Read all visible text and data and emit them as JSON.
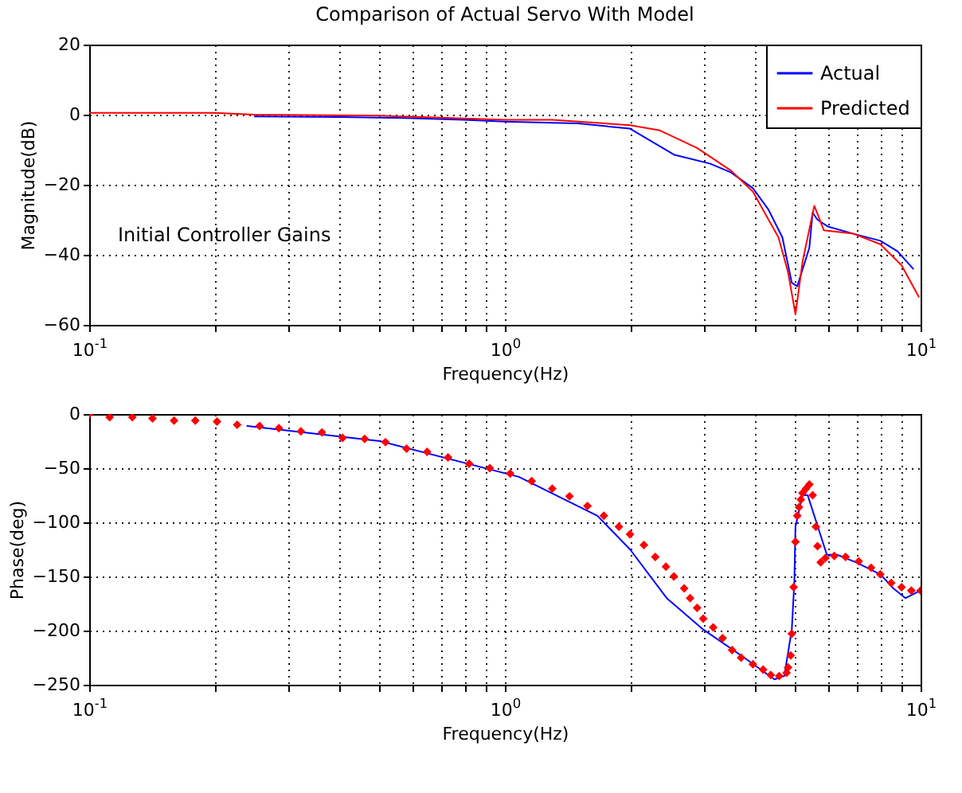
{
  "chart_data": [
    {
      "type": "line",
      "title": "Comparison of Actual Servo With Model",
      "xlabel": "Frequency(Hz)",
      "ylabel": "Magnitude(dB)",
      "log": "x",
      "xlim": [
        0.1,
        10
      ],
      "xticks": [
        {
          "value": 0.1,
          "label": "10$^{-1}$"
        },
        {
          "value": 0.2,
          "label": null
        },
        {
          "value": 0.3,
          "label": null
        },
        {
          "value": 0.4,
          "label": null
        },
        {
          "value": 0.5,
          "label": null
        },
        {
          "value": 0.6,
          "label": null
        },
        {
          "value": 0.7,
          "label": null
        },
        {
          "value": 0.8,
          "label": null
        },
        {
          "value": 0.9,
          "label": null
        },
        {
          "value": 1,
          "label": "10$^{0}$"
        },
        {
          "value": 2,
          "label": null
        },
        {
          "value": 3,
          "label": null
        },
        {
          "value": 4,
          "label": null
        },
        {
          "value": 5,
          "label": null
        },
        {
          "value": 6,
          "label": null
        },
        {
          "value": 7,
          "label": null
        },
        {
          "value": 8,
          "label": null
        },
        {
          "value": 9,
          "label": null
        },
        {
          "value": 10,
          "label": "10$^{1}$"
        }
      ],
      "ylim": [
        -60,
        20
      ],
      "yticks": [
        -60,
        -40,
        -20,
        0,
        20
      ],
      "grid": true,
      "legend": "top right",
      "annotations": [
        "Initial Controller Gains"
      ],
      "series": [
        {
          "name": "Actual",
          "color": "#0000ff",
          "x": [
            0.25,
            0.4,
            0.6,
            0.8,
            1.0,
            1.5,
            2.0,
            2.55,
            3.12,
            3.5,
            3.95,
            4.3,
            4.65,
            4.9,
            5.05,
            5.4,
            5.5,
            5.65,
            6.0,
            6.9,
            8.0,
            8.8,
            9.6
          ],
          "values": [
            -0.5,
            -0.7,
            -1,
            -1.5,
            -2,
            -2.5,
            -4,
            -11.4,
            -14,
            -16.5,
            -21,
            -27,
            -35,
            -48,
            -49,
            -38,
            -28,
            -30,
            -32,
            -34,
            -36,
            -39,
            -44
          ]
        },
        {
          "name": "Predicted",
          "color": "#ff0000",
          "x": [
            0.1,
            0.2,
            0.25,
            0.5,
            1.0,
            1.3,
            2.0,
            2.36,
            2.9,
            3.5,
            3.95,
            4.55,
            4.8,
            5.0,
            5.2,
            5.55,
            5.85,
            6.9,
            8.0,
            9.0,
            9.9
          ],
          "values": [
            0.5,
            0.5,
            0,
            -0.3,
            -1.5,
            -1.5,
            -3,
            -4.5,
            -9.5,
            -16,
            -22,
            -35,
            -45,
            -57,
            -42,
            -26,
            -33,
            -34,
            -37,
            -43,
            -52
          ]
        }
      ]
    },
    {
      "type": "line",
      "xlabel": "Frequency(Hz)",
      "ylabel": "Phase(deg)",
      "log": "x",
      "xlim": [
        0.1,
        10
      ],
      "xticks": [
        {
          "value": 0.1,
          "label": "10$^{-1}$"
        },
        {
          "value": 0.2,
          "label": null
        },
        {
          "value": 0.3,
          "label": null
        },
        {
          "value": 0.4,
          "label": null
        },
        {
          "value": 0.5,
          "label": null
        },
        {
          "value": 0.6,
          "label": null
        },
        {
          "value": 0.7,
          "label": null
        },
        {
          "value": 0.8,
          "label": null
        },
        {
          "value": 0.9,
          "label": null
        },
        {
          "value": 1,
          "label": "10$^{0}$"
        },
        {
          "value": 2,
          "label": null
        },
        {
          "value": 3,
          "label": null
        },
        {
          "value": 4,
          "label": null
        },
        {
          "value": 5,
          "label": null
        },
        {
          "value": 6,
          "label": null
        },
        {
          "value": 7,
          "label": null
        },
        {
          "value": 8,
          "label": null
        },
        {
          "value": 9,
          "label": null
        },
        {
          "value": 10,
          "label": "10$^{1}$"
        }
      ],
      "ylim": [
        -250,
        0
      ],
      "yticks": [
        -250,
        -200,
        -150,
        -100,
        -50,
        0
      ],
      "grid": true,
      "series": [
        {
          "color": "#0000ff",
          "x": [
            0.24,
            0.5,
            1.08,
            1.67,
            2.0,
            2.45,
            3.0,
            3.7,
            4.45,
            4.7,
            4.9,
            4.97,
            5.0,
            5.2,
            5.35,
            5.95,
            6.3,
            7.0,
            8.0,
            8.6,
            9.2,
            10
          ],
          "values": [
            -11,
            -25,
            -58,
            -94,
            -125,
            -170,
            -199,
            -223,
            -245,
            -242,
            -199,
            -155,
            -104,
            -75,
            -75,
            -130,
            -130,
            -137,
            -148,
            -161,
            -170,
            -163
          ]
        },
        {
          "type": "scatter",
          "marker": "diamond",
          "color": "#ff0000",
          "x": [
            0.1,
            0.112,
            0.127,
            0.142,
            0.16,
            0.18,
            0.203,
            0.227,
            0.257,
            0.286,
            0.323,
            0.363,
            0.407,
            0.46,
            0.516,
            0.58,
            0.65,
            0.73,
            0.82,
            0.92,
            1.03,
            1.16,
            1.3,
            1.43,
            1.58,
            1.73,
            1.88,
            2.0,
            2.16,
            2.3,
            2.44,
            2.55,
            2.7,
            2.79,
            2.9,
            3.0,
            3.17,
            3.34,
            3.52,
            3.7,
            3.95,
            4.18,
            4.36,
            4.57,
            4.76,
            4.8,
            4.87,
            4.9,
            4.95,
            5.0,
            5.05,
            5.1,
            5.15,
            5.2,
            5.3,
            5.4,
            5.5,
            5.6,
            5.65,
            5.75,
            5.9,
            6.2,
            6.6,
            7.1,
            7.6,
            8.0,
            8.5,
            9.0,
            9.5,
            10
          ],
          "values": [
            0,
            -3,
            -3,
            -4,
            -6,
            -6,
            -7,
            -10,
            -11,
            -13,
            -16,
            -17,
            -22,
            -23,
            -26,
            -32,
            -35,
            -40,
            -46,
            -50,
            -55,
            -62,
            -69,
            -76,
            -85,
            -94,
            -104,
            -111,
            -121,
            -132,
            -141,
            -150,
            -161,
            -170,
            -179,
            -189,
            -197,
            -207,
            -218,
            -225,
            -231,
            -236,
            -241,
            -242,
            -239,
            -234,
            -223,
            -203,
            -160,
            -118,
            -94,
            -86,
            -79,
            -73,
            -69,
            -65,
            -75,
            -104,
            -122,
            -137,
            -133,
            -131,
            -132,
            -136,
            -142,
            -148,
            -156,
            -160,
            -163,
            -163
          ]
        }
      ]
    }
  ]
}
